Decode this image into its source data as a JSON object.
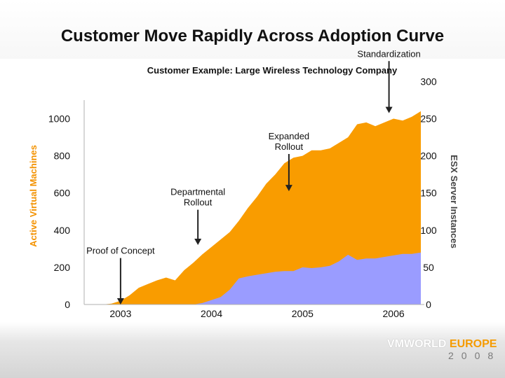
{
  "slide": {
    "title": "Customer Move Rapidly Across Adoption Curve",
    "subtitle": "Customer Example: Large Wireless Technology Company"
  },
  "branding": {
    "part1": "VMWORLD",
    "part2": "EUROPE",
    "year": "2008"
  },
  "colors": {
    "orange": "#f99c00",
    "blue": "#9a9cff",
    "left_axis_title": "#f39200",
    "right_axis_title": "#444444"
  },
  "chart_data": {
    "type": "area",
    "x": [
      2002.7,
      2002.8,
      2002.9,
      2003.0,
      2003.1,
      2003.2,
      2003.3,
      2003.4,
      2003.5,
      2003.6,
      2003.7,
      2003.8,
      2003.9,
      2004.0,
      2004.1,
      2004.2,
      2004.3,
      2004.4,
      2004.5,
      2004.6,
      2004.7,
      2004.8,
      2004.9,
      2005.0,
      2005.1,
      2005.2,
      2005.3,
      2005.4,
      2005.5,
      2005.6,
      2005.7,
      2005.8,
      2005.9,
      2006.0,
      2006.1,
      2006.2,
      2006.3
    ],
    "series": [
      {
        "axis": "left",
        "values": [
          0,
          0,
          5,
          20,
          50,
          90,
          110,
          130,
          145,
          130,
          185,
          225,
          270,
          310,
          350,
          390,
          450,
          520,
          580,
          650,
          700,
          760,
          790,
          800,
          830,
          830,
          840,
          870,
          900,
          970,
          980,
          960,
          980,
          1000,
          990,
          1010,
          1040
        ]
      },
      {
        "axis": "right",
        "values": [
          0,
          0,
          0,
          0,
          0,
          0,
          0,
          0,
          0,
          0,
          0,
          0,
          2,
          6,
          10,
          20,
          35,
          38,
          40,
          42,
          44,
          45,
          45,
          50,
          49,
          50,
          52,
          58,
          67,
          60,
          62,
          62,
          64,
          66,
          68,
          68,
          70
        ]
      }
    ],
    "x_ticks": [
      "2003",
      "2004",
      "2005",
      "2006"
    ],
    "x_tick_values": [
      2003,
      2004,
      2005,
      2006
    ],
    "xlim": [
      2002.6,
      2006.3
    ],
    "y_left": {
      "label": "Active Virtual Machines",
      "ticks": [
        0,
        200,
        400,
        600,
        800,
        1000
      ],
      "lim": [
        0,
        1100
      ]
    },
    "y_right": {
      "label": "ESX Server Instances",
      "ticks": [
        0,
        50,
        100,
        150,
        200,
        250,
        300
      ],
      "lim": [
        0,
        275
      ]
    },
    "annotations": [
      {
        "text": "Proof of Concept",
        "lines": [
          "Proof of Concept"
        ],
        "x": 2003.0,
        "arrow_from": 250,
        "arrow_to": 0
      },
      {
        "text": "Departmental Rollout",
        "lines": [
          "Departmental",
          "Rollout"
        ],
        "x": 2003.85,
        "arrow_from": 510,
        "arrow_to": 320
      },
      {
        "text": "Expanded Rollout",
        "lines": [
          "Expanded",
          "Rollout"
        ],
        "x": 2004.85,
        "arrow_from": 810,
        "arrow_to": 610
      },
      {
        "text": "Standardization",
        "lines": [
          "Standardization"
        ],
        "x": 2005.95,
        "arrow_from": 1310,
        "arrow_to": 1030
      }
    ],
    "grid": false,
    "legend": "none"
  }
}
